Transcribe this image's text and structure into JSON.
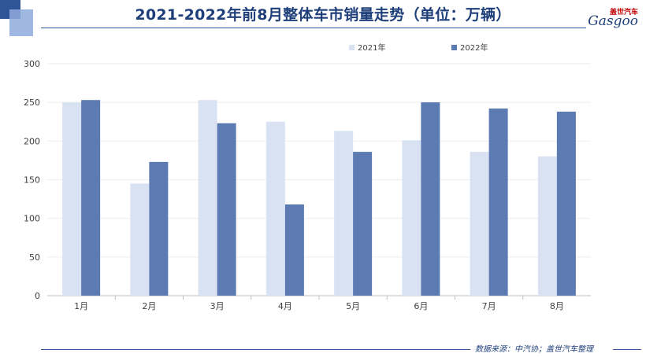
{
  "header": {
    "title": "2021-2022年前8月整体车市销量走势（单位：万辆）",
    "logo_cn": "盖世汽车",
    "logo_en": "Gasgoo"
  },
  "footer": {
    "source": "数据来源：中汽协；盖世汽车整理"
  },
  "colors": {
    "series_2021": "#d9e2f3",
    "series_2022": "#5b7bb2",
    "axis_text": "#404040",
    "title": "#1f3f7a",
    "accent_dark": "#2f5597",
    "accent_light": "#8faadc"
  },
  "chart_data": {
    "type": "bar",
    "title": "2021-2022年前8月整体车市销量走势（单位：万辆）",
    "categories": [
      "1月",
      "2月",
      "3月",
      "4月",
      "5月",
      "6月",
      "7月",
      "8月"
    ],
    "series": [
      {
        "name": "2021年",
        "values": [
          250,
          145,
          253,
          225,
          213,
          201,
          186,
          180
        ]
      },
      {
        "name": "2022年",
        "values": [
          253,
          173,
          223,
          118,
          186,
          250,
          242,
          238
        ]
      }
    ],
    "ylim": [
      0,
      300
    ],
    "yticks": [
      0,
      50,
      100,
      150,
      200,
      250,
      300
    ],
    "grid": true,
    "legend": "top-center"
  }
}
